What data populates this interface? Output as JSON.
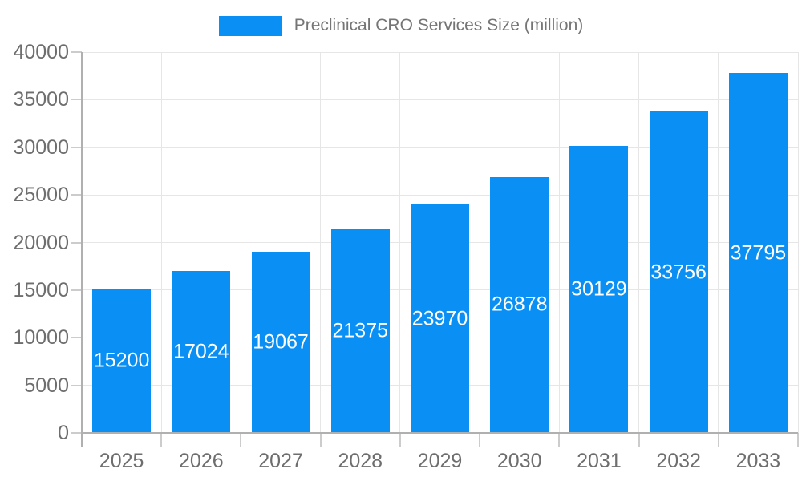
{
  "legend": {
    "label": "Preclinical CRO Services Size (million)"
  },
  "chart_data": {
    "type": "bar",
    "title": "Preclinical CRO Services Size (million)",
    "series_name": "Preclinical CRO Services Size (million)",
    "categories": [
      "2025",
      "2026",
      "2027",
      "2028",
      "2029",
      "2030",
      "2031",
      "2032",
      "2033"
    ],
    "values": [
      15200,
      17024,
      19067,
      21375,
      23970,
      26878,
      30129,
      33756,
      37795
    ],
    "bar_labels": [
      "15200",
      "17024",
      "19067",
      "21375",
      "23970",
      "26878",
      "30129",
      "33756",
      "37795"
    ],
    "xlabel": "",
    "ylabel": "",
    "ylim": [
      0,
      40000
    ],
    "yticks": [
      0,
      5000,
      10000,
      15000,
      20000,
      25000,
      30000,
      35000,
      40000
    ],
    "ytick_labels": [
      "0",
      "5000",
      "10000",
      "15000",
      "20000",
      "25000",
      "30000",
      "35000",
      "40000"
    ],
    "grid": true,
    "legend_position": "top-center",
    "colors": {
      "bar": "#0a90f4",
      "bar_label": "#ffffff",
      "axis_text": "#6e6e6e",
      "legend_text": "#757575",
      "gridline": "#e6e6e6",
      "axis_line": "#b0b0b0",
      "tick": "#cccccc",
      "background": "#ffffff"
    }
  }
}
